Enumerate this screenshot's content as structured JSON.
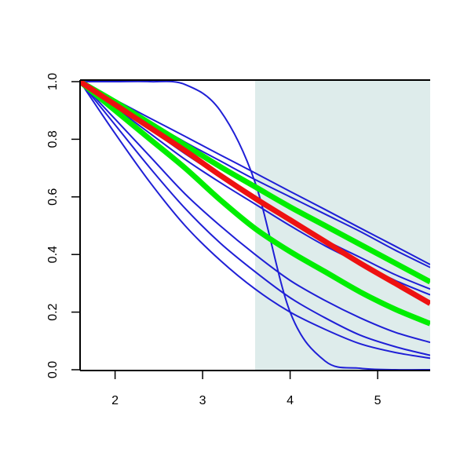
{
  "chart_data": {
    "type": "line",
    "x": [
      1.6,
      2.0,
      2.4,
      2.8,
      3.2,
      3.6,
      4.0,
      4.4,
      4.8,
      5.2,
      5.6
    ],
    "series": [
      {
        "color": "#1f1fd6",
        "width": 2,
        "values": [
          1,
          0.937,
          0.873,
          0.81,
          0.746,
          0.683,
          0.619,
          0.556,
          0.492,
          0.429,
          0.365
        ]
      },
      {
        "color": "#1f1fd6",
        "width": 2,
        "values": [
          1,
          0.93,
          0.86,
          0.79,
          0.725,
          0.66,
          0.6,
          0.54,
          0.48,
          0.415,
          0.355
        ]
      },
      {
        "color": "#1f1fd6",
        "width": 2,
        "values": [
          1,
          0.92,
          0.835,
          0.75,
          0.67,
          0.59,
          0.52,
          0.45,
          0.39,
          0.33,
          0.28
        ]
      },
      {
        "color": "#1f1fd6",
        "width": 2,
        "values": [
          1,
          0.91,
          0.82,
          0.73,
          0.65,
          0.575,
          0.5,
          0.43,
          0.37,
          0.31,
          0.26
        ]
      },
      {
        "color": "#1f1fd6",
        "width": 2,
        "values": [
          1,
          0.87,
          0.74,
          0.61,
          0.5,
          0.4,
          0.31,
          0.24,
          0.18,
          0.13,
          0.095
        ]
      },
      {
        "color": "#1f1fd6",
        "width": 2,
        "values": [
          1,
          0.85,
          0.7,
          0.56,
          0.44,
          0.34,
          0.25,
          0.18,
          0.12,
          0.08,
          0.05
        ]
      },
      {
        "color": "#1f1fd6",
        "width": 2,
        "values": [
          1,
          0.82,
          0.65,
          0.5,
          0.38,
          0.28,
          0.2,
          0.14,
          0.09,
          0.06,
          0.04
        ]
      },
      {
        "color": "#1f1fd6",
        "width": 2,
        "values": [
          1,
          1,
          1,
          0.99,
          0.9,
          0.65,
          0.2,
          0.03,
          0.005,
          0,
          0
        ]
      },
      {
        "color": "#00ee00",
        "width": 7,
        "values": [
          1,
          0.93,
          0.855,
          0.78,
          0.705,
          0.635,
          0.565,
          0.5,
          0.435,
          0.37,
          0.305
        ]
      },
      {
        "color": "#00ee00",
        "width": 7,
        "values": [
          1,
          0.9,
          0.8,
          0.7,
          0.59,
          0.49,
          0.41,
          0.34,
          0.27,
          0.21,
          0.16
        ]
      },
      {
        "color": "#ee1111",
        "width": 7,
        "values": [
          1,
          0.92,
          0.84,
          0.76,
          0.675,
          0.595,
          0.52,
          0.445,
          0.37,
          0.3,
          0.23
        ]
      }
    ],
    "shade": {
      "xlim": [
        3.6,
        5.6
      ],
      "color": "#deeceb"
    },
    "xlim": [
      1.6,
      5.6
    ],
    "xticks": [
      2,
      3,
      4,
      5
    ],
    "ylim": [
      0,
      1
    ],
    "yticks": [
      {
        "value": 0,
        "label": "0.0"
      },
      0.2,
      0.4,
      0.6,
      0.8,
      {
        "value": 1,
        "label": "1.0"
      }
    ]
  }
}
